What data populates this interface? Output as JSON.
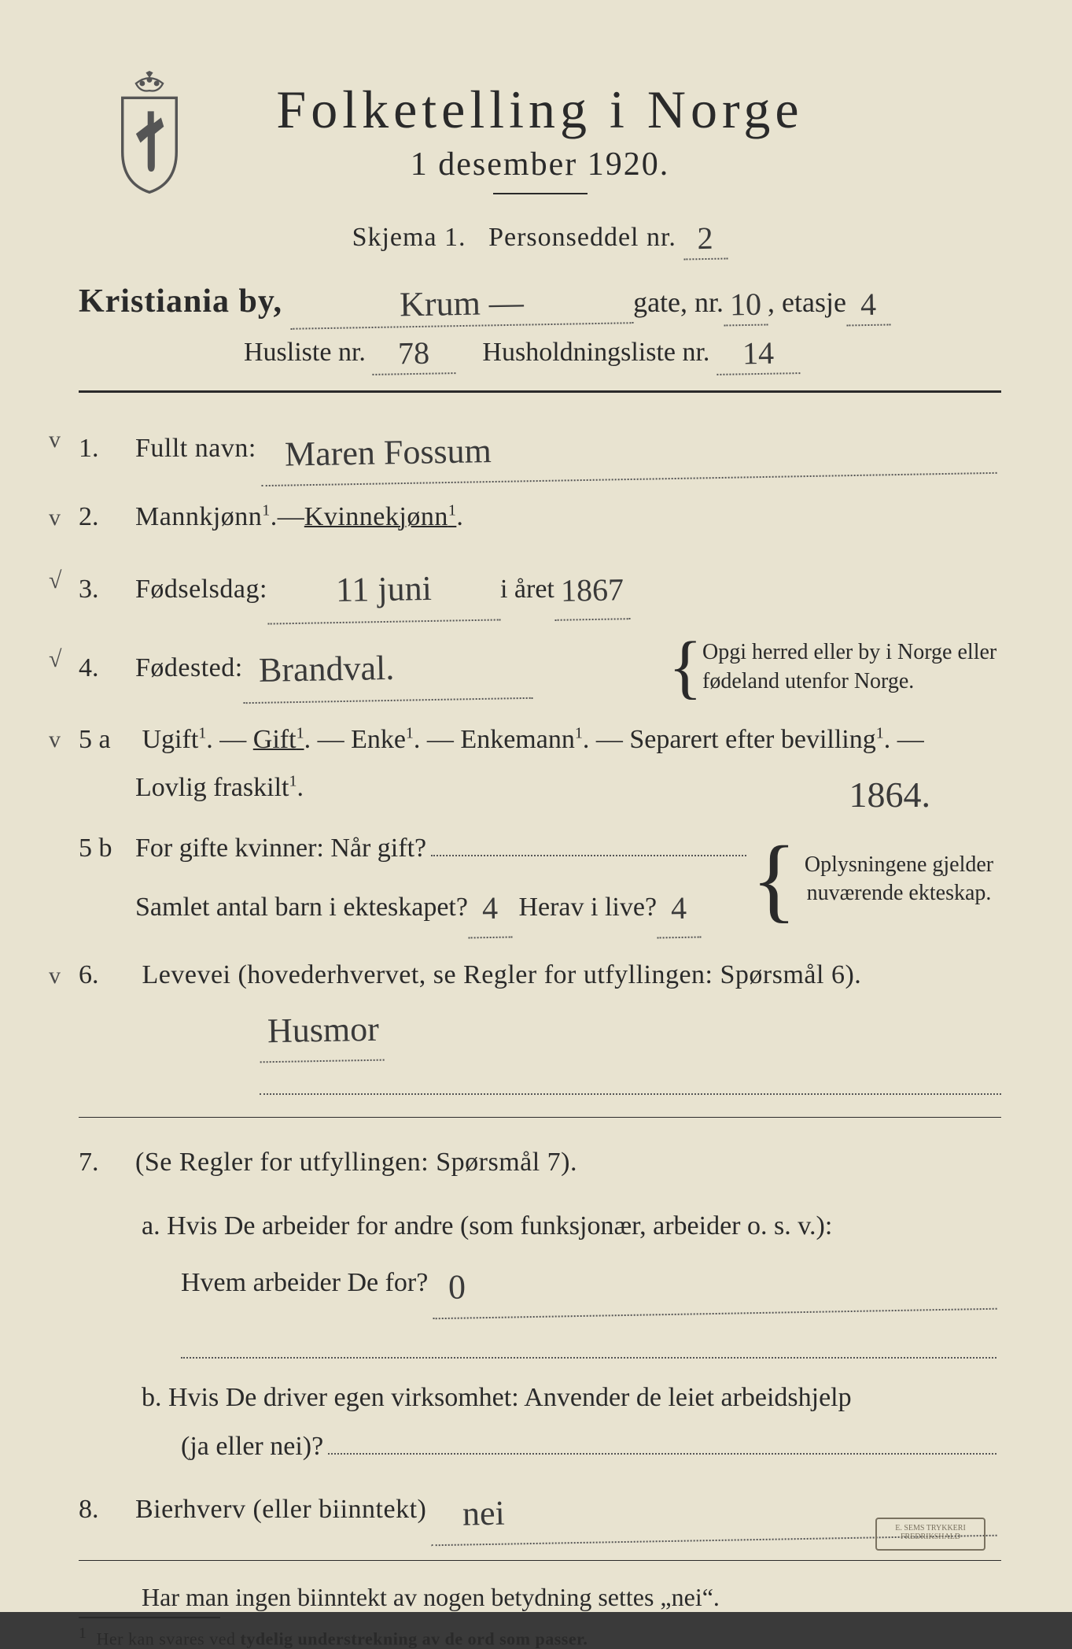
{
  "header": {
    "title": "Folketelling i Norge",
    "subtitle": "1 desember 1920."
  },
  "skjema": {
    "prefix": "Skjema 1.",
    "label": "Personseddel nr.",
    "value": "2"
  },
  "address": {
    "city_label": "Kristiania by,",
    "street": "Krum —",
    "gate_label": "gate, nr.",
    "gate_nr": "10",
    "etasje_label": ", etasje",
    "etasje": "4",
    "husliste_label": "Husliste nr.",
    "husliste_nr": "78",
    "husholdning_label": "Husholdningsliste nr.",
    "husholdning_nr": "14"
  },
  "q1": {
    "num": "1.",
    "label": "Fullt navn:",
    "value": "Maren Fossum"
  },
  "q2": {
    "num": "2.",
    "label_m": "Mannkjønn",
    "dash": " — ",
    "label_k": "Kvinnekjønn"
  },
  "q3": {
    "num": "3.",
    "label": "Fødselsdag:",
    "day_month": "11 juni",
    "mid": " i året",
    "year": "1867"
  },
  "q4": {
    "num": "4.",
    "label": "Fødested:",
    "value": "Brandval.",
    "aside": "Opgi herred eller by i Norge eller fødeland utenfor Norge."
  },
  "q5a": {
    "num": "5 a",
    "opts": [
      "Ugift",
      "Gift",
      "Enke",
      "Enkemann",
      "Separert efter bevilling"
    ],
    "line2": "Lovlig fraskilt",
    "underlined_index": 1
  },
  "q5b": {
    "num": "5 b",
    "l1a": "For gifte kvinner:  Når gift?",
    "l2a": "Samlet antal barn i ekteskapet?",
    "children_total": "4",
    "l2b": "Herav i live?",
    "children_alive": "4",
    "aside": "Oplysningene gjelder nuværende ekteskap.",
    "annotation": "1864."
  },
  "q6": {
    "num": "6.",
    "label": "Levevei (hovederhvervet, se Regler for utfyllingen: Spørsmål 6).",
    "value": "Husmor"
  },
  "q7": {
    "num": "7.",
    "label": "(Se Regler for utfyllingen:  Spørsmål 7).",
    "a_label": "a.  Hvis De arbeider for andre (som funksjonær, arbeider o. s. v.):",
    "a_q": "Hvem arbeider De for?",
    "a_value": "0",
    "b_label": "b.   Hvis De driver egen virksomhet:  Anvender de leiet arbeidshjelp",
    "b_q": "(ja eller nei)?"
  },
  "q8": {
    "num": "8.",
    "label": "Bierhverv (eller biinntekt)",
    "value": "nei"
  },
  "note": "Har man ingen biinntekt av nogen betydning settes „nei“.",
  "footnote": {
    "num": "1",
    "text": "Her kan svares ved tydelig understrekning av de ord som passer."
  },
  "stamp": "E. SEMS TRYKKERI FREDRIKSHALD"
}
